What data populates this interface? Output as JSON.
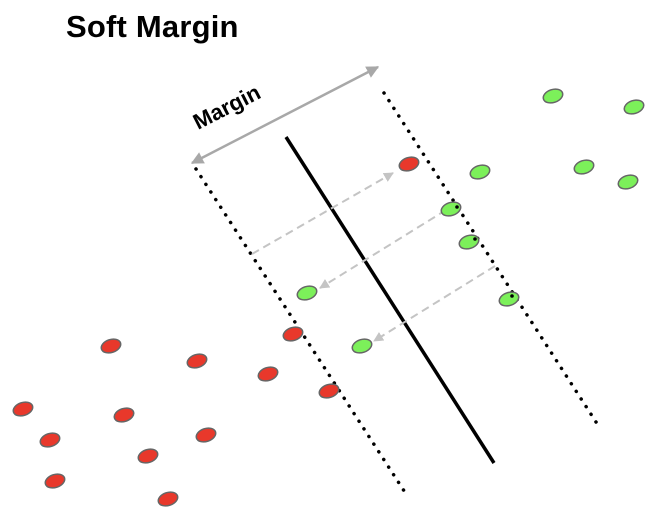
{
  "title": "Soft Margin",
  "margin_label": "Margin",
  "colors": {
    "class_a_fill": "#e8382b",
    "class_b_fill": "#7cf05a",
    "point_stroke": "#666666",
    "hyperplane": "#000000",
    "margin_boundary": "#000000",
    "margin_arrow": "#a8a8a8",
    "slack_arrow": "#c4c4c4"
  }
}
